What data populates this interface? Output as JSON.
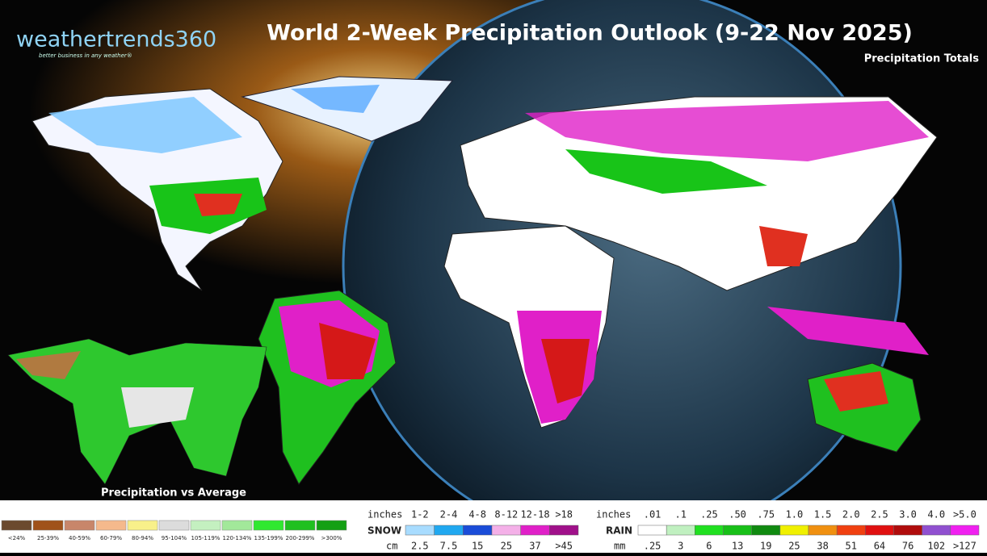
{
  "header": {
    "logo": "weathertrends360",
    "tagline": "better business in any weather®",
    "title": "World 2-Week Precipitation Outlook (9-22 Nov 2025)",
    "subtitle": "Precipitation Totals"
  },
  "inset": {
    "label": "Precipitation vs Average"
  },
  "anomaly_legend": {
    "labels": [
      "<24%",
      "25-39%",
      "40-59%",
      "60-79%",
      "80-94%",
      "95-104%",
      "105-119%",
      "120-134%",
      "135-199%",
      "200-299%",
      ">300%"
    ],
    "colors": [
      "#6b4a2e",
      "#a0521a",
      "#c8866a",
      "#f5b98c",
      "#f8f08a",
      "#dcdcdc",
      "#c4f0c0",
      "#a2e89a",
      "#30e830",
      "#20c020",
      "#14a014"
    ]
  },
  "snow_legend": {
    "name": "SNOW",
    "top_unit": "inches",
    "bottom_unit": "cm",
    "top_labels": [
      "1-2",
      "2-4",
      "4-8",
      "8-12",
      "12-18",
      ">18"
    ],
    "bottom_labels": [
      "2.5",
      "7.5",
      "15",
      "25",
      "37",
      ">45"
    ],
    "colors": [
      "#a8dcff",
      "#20a8f0",
      "#1a4cd8",
      "#f4b0e8",
      "#e020c8",
      "#a0108a"
    ]
  },
  "rain_legend": {
    "name": "RAIN",
    "top_unit": "inches",
    "bottom_unit": "mm",
    "top_labels": [
      ".01",
      ".1",
      ".25",
      ".50",
      ".75",
      "1.0",
      "1.5",
      "2.0",
      "2.5",
      "3.0",
      "4.0",
      ">5.0"
    ],
    "bottom_labels": [
      ".25",
      "3",
      "6",
      "13",
      "19",
      "25",
      "38",
      "51",
      "64",
      "76",
      "102",
      ">127"
    ],
    "colors": [
      "#ffffff",
      "#c0f0c0",
      "#20e020",
      "#18c018",
      "#108a10",
      "#f0f000",
      "#f09010",
      "#f04010",
      "#e01010",
      "#b00c0c",
      "#9050d0",
      "#f020f0"
    ]
  }
}
